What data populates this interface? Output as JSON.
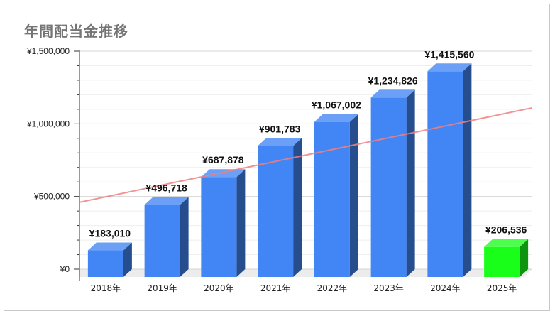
{
  "chart_data": {
    "type": "bar",
    "title": "年間配当金推移",
    "categories": [
      "2018年",
      "2019年",
      "2020年",
      "2021年",
      "2022年",
      "2023年",
      "2024年",
      "2025年"
    ],
    "values": [
      183010,
      496718,
      687878,
      901783,
      1067002,
      1234826,
      1415560,
      206536
    ],
    "data_labels": [
      "¥183,010",
      "¥496,718",
      "¥687,878",
      "¥901,783",
      "¥1,067,002",
      "¥1,234,826",
      "¥1,415,560",
      "¥206,536"
    ],
    "y_ticks": [
      0,
      500000,
      1000000,
      1500000
    ],
    "y_tick_labels": [
      "¥0",
      "¥500,000",
      "¥1,000,000",
      "¥1,500,000"
    ],
    "ylim": [
      0,
      1500000
    ],
    "bar_style": "3d",
    "trendline": "linear",
    "trendline_range": [
      460000,
      1110000
    ],
    "grid": true,
    "colors": {
      "bar": "#4285f4",
      "bar_highlight": "#1aff1a",
      "trendline": "#f08080",
      "grid": "#e0e0e0"
    }
  }
}
